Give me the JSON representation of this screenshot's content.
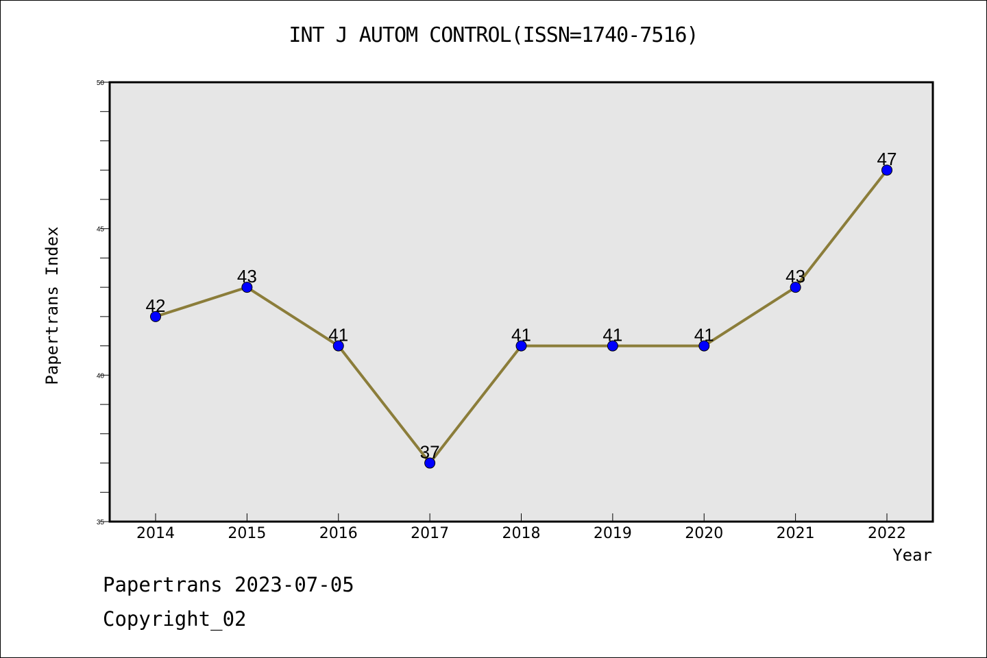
{
  "chart_data": {
    "type": "line",
    "title": "INT J AUTOM CONTROL(ISSN=1740-7516)",
    "xlabel": "Year",
    "ylabel": "Papertrans Index",
    "categories": [
      "2014",
      "2015",
      "2016",
      "2017",
      "2018",
      "2019",
      "2020",
      "2021",
      "2022"
    ],
    "values": [
      42,
      43,
      41,
      37,
      41,
      41,
      41,
      43,
      47
    ],
    "ylim": [
      35,
      50
    ],
    "yticks": [
      "35",
      "40",
      "45",
      "50"
    ],
    "line_color": "#8B7D3A",
    "marker_color": "#0000FF",
    "plot_background": "#E6E6E6",
    "grid": false
  },
  "footer": {
    "line1": "Papertrans 2023-07-05",
    "line2": "Copyright_02"
  }
}
